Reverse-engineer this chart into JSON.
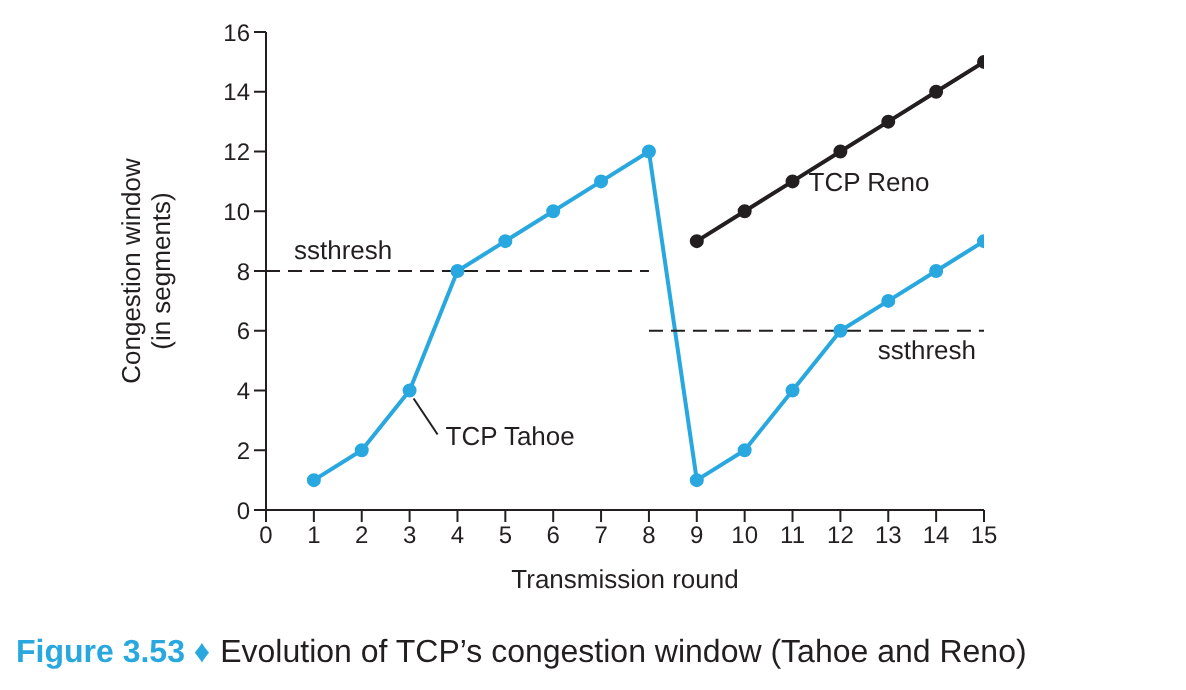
{
  "chart_data": {
    "type": "line",
    "xlabel": "Transmission round",
    "ylabel": "Congestion window (in segments)",
    "xlim": [
      0,
      15
    ],
    "xticks": [
      0,
      1,
      2,
      3,
      4,
      5,
      6,
      7,
      8,
      9,
      10,
      11,
      12,
      13,
      14,
      15
    ],
    "ylim": [
      0,
      16
    ],
    "yticks": [
      0,
      2,
      4,
      6,
      8,
      10,
      12,
      14,
      16
    ],
    "grid": false,
    "legend": false,
    "marker": "circle",
    "series": [
      {
        "name": "TCP Tahoe",
        "color": "#29a8e0",
        "x": [
          1,
          2,
          3,
          4,
          5,
          6,
          7,
          8,
          9,
          10,
          11,
          12,
          13,
          14,
          15
        ],
        "values": [
          1,
          2,
          4,
          8,
          9,
          10,
          11,
          12,
          1,
          2,
          4,
          6,
          7,
          8,
          9
        ]
      },
      {
        "name": "TCP Reno",
        "color": "#231f20",
        "x": [
          9,
          10,
          11,
          12,
          13,
          14,
          15
        ],
        "values": [
          9,
          10,
          11,
          12,
          13,
          14,
          15
        ]
      },
      {
        "name": "ssthresh",
        "color": "#231f20",
        "marker": "none",
        "line_style": "dashed",
        "x": [
          0,
          8
        ],
        "values": [
          8,
          8
        ]
      },
      {
        "name": "ssthresh",
        "color": "#231f20",
        "marker": "none",
        "line_style": "dashed",
        "x": [
          8,
          15
        ],
        "values": [
          6,
          6
        ]
      }
    ],
    "annotations": [
      "Figure 3.53 ♦",
      "Evolution of TCP’s congestion window (Tahoe and Reno)"
    ]
  }
}
